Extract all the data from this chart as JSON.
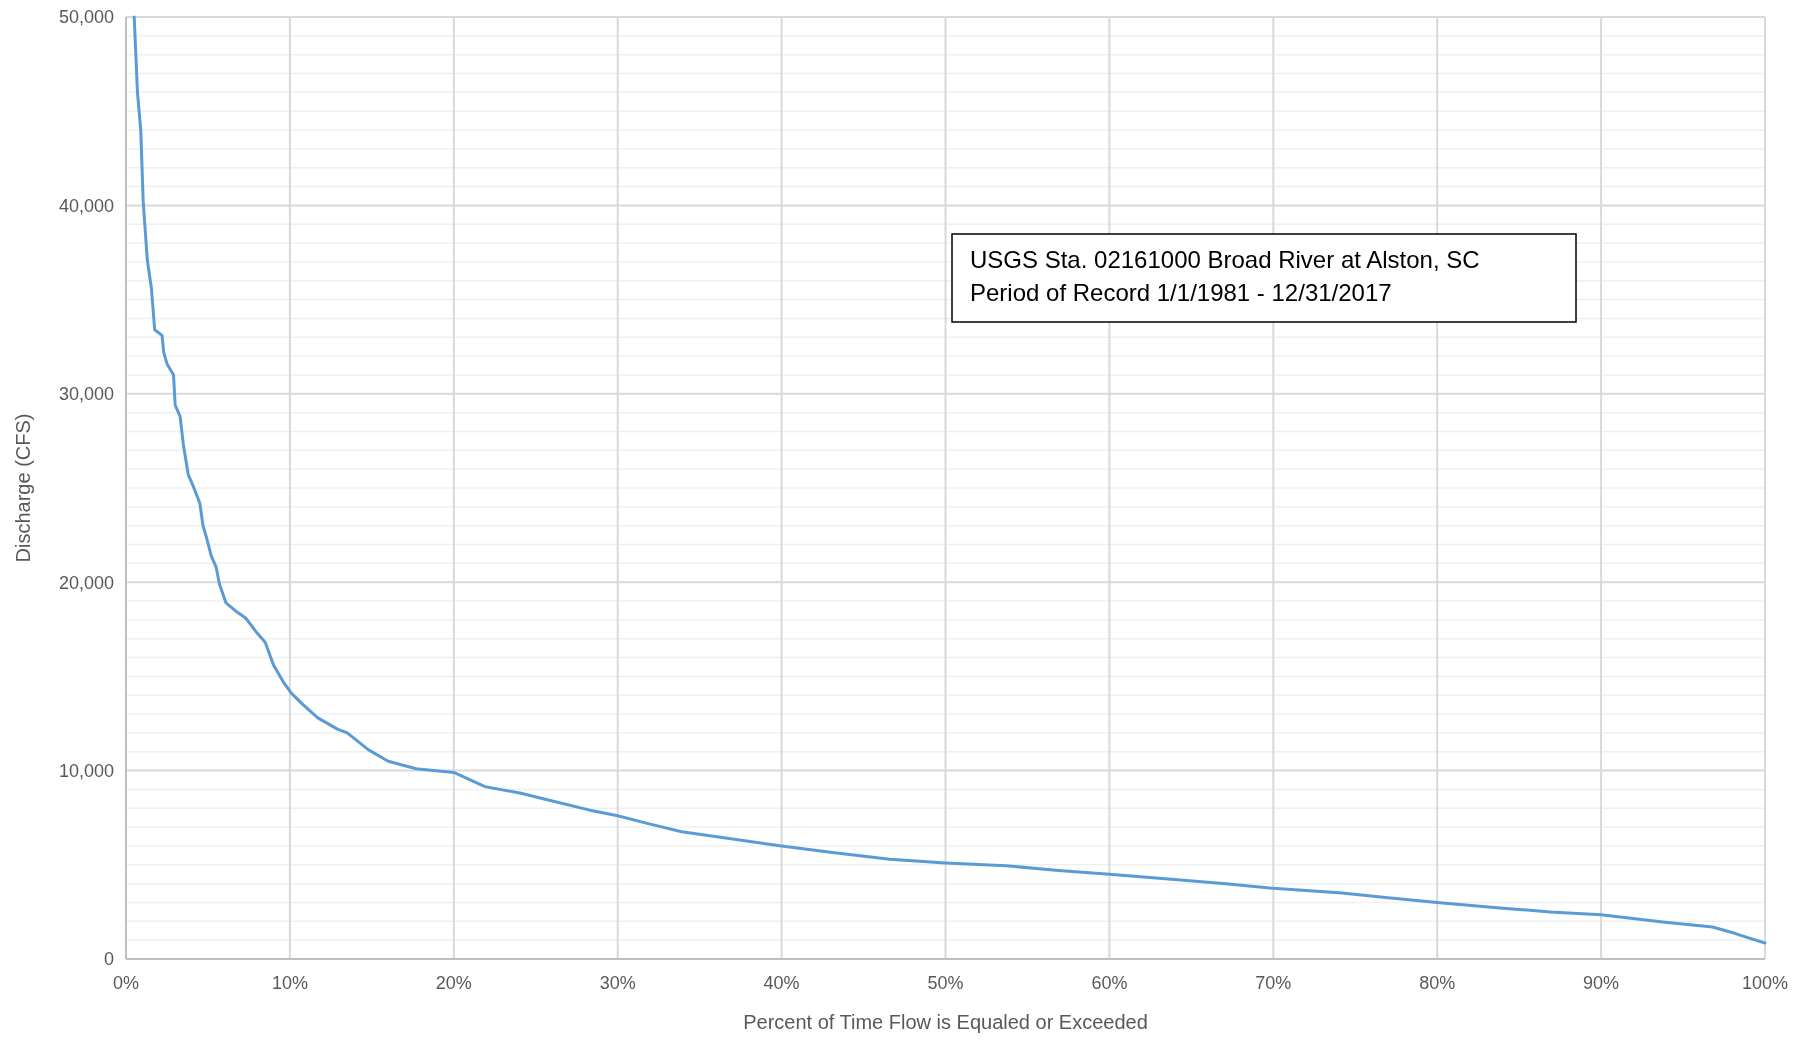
{
  "chart_data": {
    "type": "line",
    "xlabel": "Percent of Time Flow is Equaled or Exceeded",
    "ylabel": "Discharge (CFS)",
    "annotations": [
      "USGS Sta. 02161000 Broad River at Alston, SC",
      "Period of Record 1/1/1981 - 12/31/2017"
    ],
    "xlim": [
      0,
      100
    ],
    "xticks": [
      {
        "value": 0,
        "label": "0%"
      },
      {
        "value": 10,
        "label": "10%"
      },
      {
        "value": 20,
        "label": "20%"
      },
      {
        "value": 30,
        "label": "30%"
      },
      {
        "value": 40,
        "label": "40%"
      },
      {
        "value": 50,
        "label": "50%"
      },
      {
        "value": 60,
        "label": "60%"
      },
      {
        "value": 70,
        "label": "70%"
      },
      {
        "value": 80,
        "label": "80%"
      },
      {
        "value": 90,
        "label": "90%"
      },
      {
        "value": 100,
        "label": "100%"
      }
    ],
    "ylim": [
      0,
      50000
    ],
    "yticks": [
      {
        "value": 0,
        "label": "0"
      },
      {
        "value": 1000,
        "label": null
      },
      {
        "value": 2000,
        "label": null
      },
      {
        "value": 3000,
        "label": null
      },
      {
        "value": 4000,
        "label": null
      },
      {
        "value": 5000,
        "label": null
      },
      {
        "value": 6000,
        "label": null
      },
      {
        "value": 7000,
        "label": null
      },
      {
        "value": 8000,
        "label": null
      },
      {
        "value": 9000,
        "label": null
      },
      {
        "value": 10000,
        "label": "10,000"
      },
      {
        "value": 11000,
        "label": null
      },
      {
        "value": 12000,
        "label": null
      },
      {
        "value": 13000,
        "label": null
      },
      {
        "value": 14000,
        "label": null
      },
      {
        "value": 15000,
        "label": null
      },
      {
        "value": 16000,
        "label": null
      },
      {
        "value": 17000,
        "label": null
      },
      {
        "value": 18000,
        "label": null
      },
      {
        "value": 19000,
        "label": null
      },
      {
        "value": 20000,
        "label": "20,000"
      },
      {
        "value": 21000,
        "label": null
      },
      {
        "value": 22000,
        "label": null
      },
      {
        "value": 23000,
        "label": null
      },
      {
        "value": 24000,
        "label": null
      },
      {
        "value": 25000,
        "label": null
      },
      {
        "value": 26000,
        "label": null
      },
      {
        "value": 27000,
        "label": null
      },
      {
        "value": 28000,
        "label": null
      },
      {
        "value": 29000,
        "label": null
      },
      {
        "value": 30000,
        "label": "30,000"
      },
      {
        "value": 31000,
        "label": null
      },
      {
        "value": 32000,
        "label": null
      },
      {
        "value": 33000,
        "label": null
      },
      {
        "value": 34000,
        "label": null
      },
      {
        "value": 35000,
        "label": null
      },
      {
        "value": 36000,
        "label": null
      },
      {
        "value": 37000,
        "label": null
      },
      {
        "value": 38000,
        "label": null
      },
      {
        "value": 39000,
        "label": null
      },
      {
        "value": 40000,
        "label": "40,000"
      },
      {
        "value": 41000,
        "label": null
      },
      {
        "value": 42000,
        "label": null
      },
      {
        "value": 43000,
        "label": null
      },
      {
        "value": 44000,
        "label": null
      },
      {
        "value": 45000,
        "label": null
      },
      {
        "value": 46000,
        "label": null
      },
      {
        "value": 47000,
        "label": null
      },
      {
        "value": 48000,
        "label": null
      },
      {
        "value": 49000,
        "label": null
      },
      {
        "value": 50000,
        "label": "50,000"
      }
    ],
    "grid": true,
    "marker": "none",
    "line_style": "solid",
    "series": [
      {
        "color": "#5b9bd5",
        "x": [
          0.5,
          0.7,
          0.9,
          1.05,
          1.3,
          1.55,
          1.75,
          2.2,
          2.3,
          2.5,
          2.9,
          3.0,
          3.3,
          3.5,
          3.8,
          4.1,
          4.5,
          4.7,
          4.9,
          5.2,
          5.5,
          5.7,
          6.1,
          6.8,
          7.3,
          8.0,
          8.5,
          9.0,
          9.6,
          10.1,
          10.8,
          11.7,
          12.9,
          13.5,
          14.8,
          16.0,
          17.7,
          20.0,
          21.9,
          24.1,
          26.2,
          28.3,
          30,
          31.8,
          33.9,
          36.8,
          40,
          43.1,
          46.6,
          50,
          53.7,
          56.9,
          60,
          63.6,
          67.1,
          70,
          74.2,
          77,
          80,
          84,
          86.9,
          90,
          93.9,
          96.8,
          98.2,
          98.9,
          100
        ],
        "values": [
          50000,
          46000,
          44000,
          40200,
          37100,
          35600,
          33400,
          33100,
          32200,
          31600,
          31000,
          29400,
          28800,
          27300,
          25700,
          25100,
          24200,
          23000,
          22400,
          21400,
          20800,
          19900,
          18900,
          18400,
          18100,
          17300,
          16800,
          15600,
          14700,
          14100,
          13500,
          12800,
          12200,
          12000,
          11100,
          10500,
          10100,
          9900,
          9150,
          8800,
          8350,
          7900,
          7600,
          7200,
          6750,
          6400,
          6000,
          5650,
          5300,
          5100,
          4950,
          4700,
          4500,
          4250,
          4000,
          3750,
          3500,
          3250,
          3000,
          2700,
          2500,
          2350,
          1950,
          1700,
          1350,
          1150,
          850
        ]
      }
    ]
  }
}
